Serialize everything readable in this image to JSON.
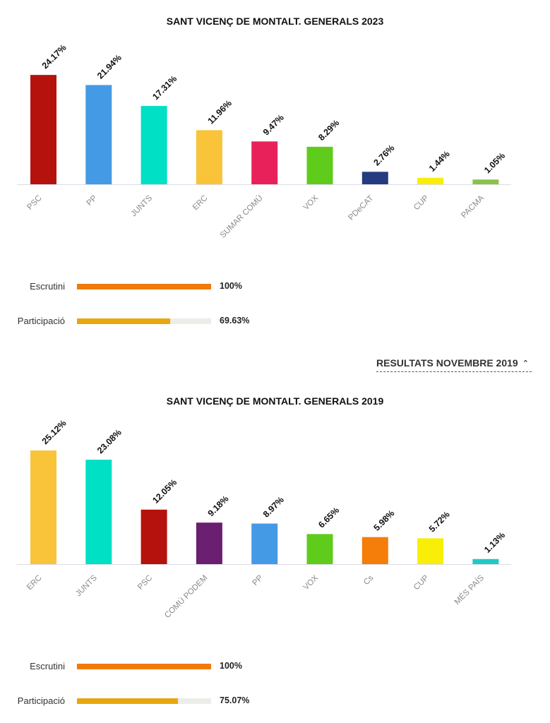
{
  "charts": [
    {
      "title": "SANT VICENÇ DE MONTALT. GENERALS 2023",
      "stats": [
        {
          "label": "Escrutini",
          "value_text": "100%",
          "fraction": 1.0,
          "color": "#f07a0a"
        },
        {
          "label": "Participació",
          "value_text": "69.63%",
          "fraction": 0.6963,
          "color": "#e8a60f"
        }
      ]
    },
    {
      "title": "SANT VICENÇ DE MONTALT. GENERALS 2019",
      "stats": [
        {
          "label": "Escrutini",
          "value_text": "100%",
          "fraction": 1.0,
          "color": "#f07a0a"
        },
        {
          "label": "Participació",
          "value_text": "75.07%",
          "fraction": 0.7507,
          "color": "#e8a60f"
        }
      ]
    }
  ],
  "toggle": {
    "label": "RESULTATS NOVEMBRE 2019",
    "icon": "chevron-up-icon"
  },
  "chart_data": [
    {
      "type": "bar",
      "title": "SANT VICENÇ DE MONTALT. GENERALS 2023",
      "categories": [
        "PSC",
        "PP",
        "JUNTS",
        "ERC",
        "SUMAR COMÚ",
        "VOX",
        "PDeCAT",
        "CUP",
        "PACMA"
      ],
      "values": [
        24.17,
        21.94,
        17.31,
        11.96,
        9.47,
        8.29,
        2.76,
        1.44,
        1.05
      ],
      "value_labels": [
        "24.17%",
        "21.94%",
        "17.31%",
        "11.96%",
        "9.47%",
        "8.29%",
        "2.76%",
        "1.44%",
        "1.05%"
      ],
      "colors": [
        "#b5120e",
        "#459ae5",
        "#00e0c4",
        "#f9c33a",
        "#e9215a",
        "#5fcc1c",
        "#243b80",
        "#f9ee08",
        "#8bc24a"
      ],
      "ylim": [
        0,
        27
      ]
    },
    {
      "type": "bar",
      "title": "SANT VICENÇ DE MONTALT. GENERALS 2019",
      "categories": [
        "ERC",
        "JUNTS",
        "PSC",
        "COMÚ PODEM",
        "PP",
        "VOX",
        "Cs",
        "CUP",
        "MÉS PAÍS"
      ],
      "values": [
        25.12,
        23.08,
        12.05,
        9.18,
        8.97,
        6.65,
        5.98,
        5.72,
        1.13
      ],
      "value_labels": [
        "25.12%",
        "23.08%",
        "12.05%",
        "9.18%",
        "8.97%",
        "6.65%",
        "5.98%",
        "5.72%",
        "1.13%"
      ],
      "colors": [
        "#f9c33a",
        "#00e0c4",
        "#b5120e",
        "#6b1f70",
        "#459ae5",
        "#5fcc1c",
        "#f57d0a",
        "#f9ee08",
        "#22c9c4"
      ],
      "ylim": [
        0,
        27
      ]
    }
  ]
}
